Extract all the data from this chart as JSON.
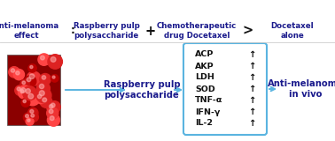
{
  "bg_color": "#ffffff",
  "arrow_color": "#5ab4e0",
  "text_color": "#1a1a8c",
  "box_border_color": "#5ab4e0",
  "markers": [
    "ACP",
    "AKP",
    "LDH",
    "SOD",
    "TNF-α",
    "IFN-γ",
    "IL-2"
  ],
  "label_rpp": "Raspberry pulp\npolysaccharide",
  "label_anti": "Anti-melanoma\nin vivo",
  "bottom_text1": "Anti-melanoma\neffect",
  "bottom_sep": ":",
  "bottom_text2": "Raspberry pulp\npolysaccharide",
  "bottom_plus": "+",
  "bottom_text3": "Chemotherapeutic\ndrug Docetaxel",
  "bottom_gt": ">",
  "bottom_text4": "Docetaxel\nalone",
  "font_size_main": 7.2,
  "font_size_box": 6.8,
  "font_size_bottom": 6.2,
  "font_size_sym": 8.5
}
